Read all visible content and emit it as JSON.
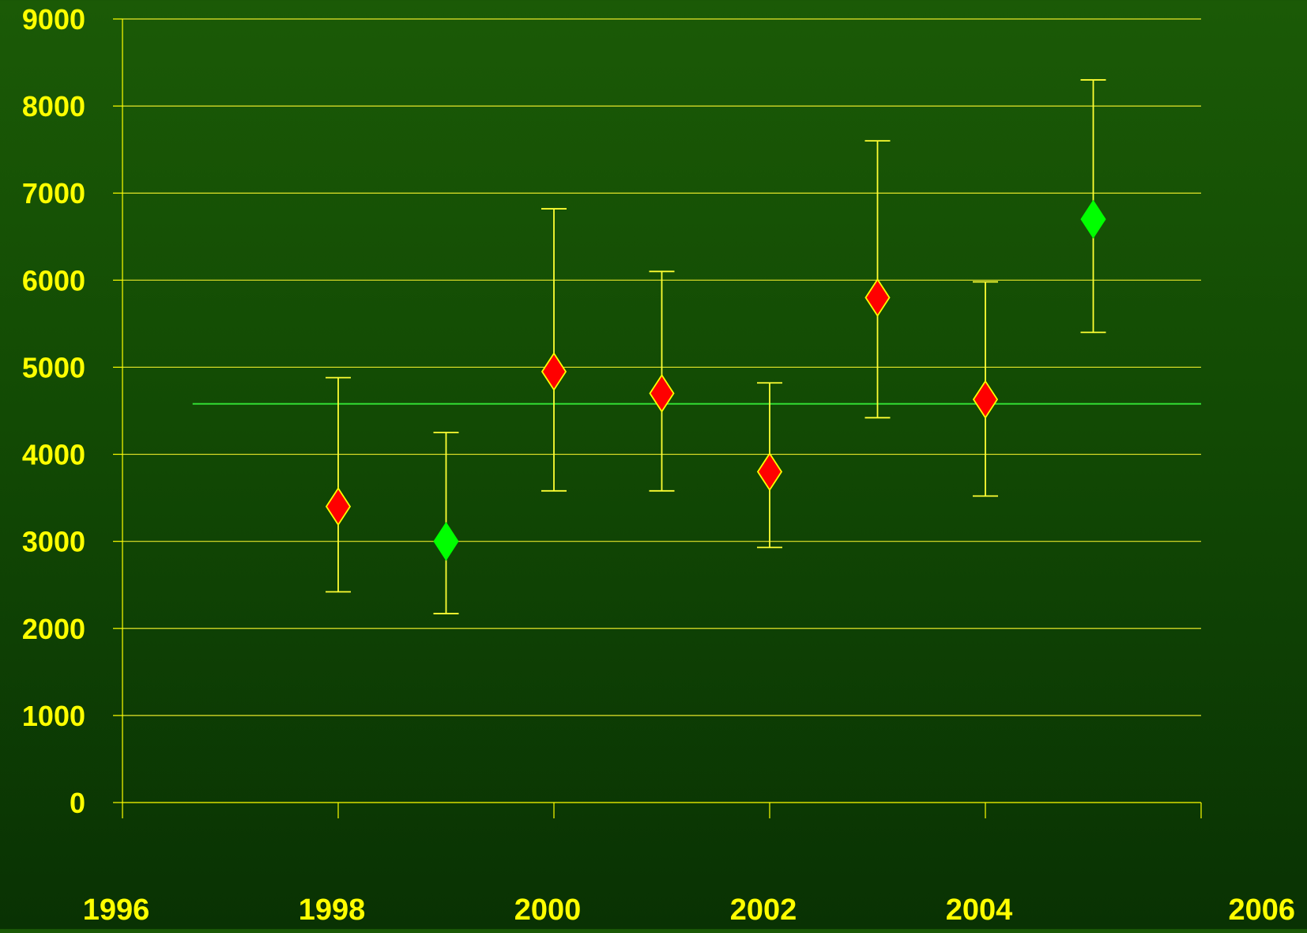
{
  "colors": {
    "axis": "#ffff00",
    "grid": "#e6e62a",
    "tick_text": "#ffff00",
    "error_bar": "#ffff33",
    "marker_red": "#ff0000",
    "marker_green": "#00ff00",
    "marker_outline": "#ffff00",
    "reference_line": "#33dd33"
  },
  "chart_data": {
    "type": "scatter",
    "title": "",
    "xlabel": "",
    "ylabel": "",
    "xlim": [
      1996,
      2006
    ],
    "ylim": [
      0,
      9000
    ],
    "grid": true,
    "x_ticks": [
      "1996",
      "1998",
      "2000",
      "2002",
      "2004",
      "2006"
    ],
    "y_ticks": [
      "0",
      "1000",
      "2000",
      "3000",
      "4000",
      "5000",
      "6000",
      "7000",
      "8000",
      "9000"
    ],
    "reference_line": {
      "y": 4580,
      "x_start": 1996.65,
      "x_end": 2006
    },
    "points": [
      {
        "x": 1998,
        "y": 3400,
        "low": 2420,
        "high": 4880,
        "marker_color": "red"
      },
      {
        "x": 1999,
        "y": 3000,
        "low": 2170,
        "high": 4250,
        "marker_color": "green"
      },
      {
        "x": 2000,
        "y": 4950,
        "low": 3580,
        "high": 6820,
        "marker_color": "red"
      },
      {
        "x": 2001,
        "y": 4700,
        "low": 3580,
        "high": 6100,
        "marker_color": "red"
      },
      {
        "x": 2002,
        "y": 3800,
        "low": 2930,
        "high": 4820,
        "marker_color": "red"
      },
      {
        "x": 2003,
        "y": 5800,
        "low": 4420,
        "high": 7600,
        "marker_color": "red"
      },
      {
        "x": 2004,
        "y": 4630,
        "low": 3520,
        "high": 5980,
        "marker_color": "red"
      },
      {
        "x": 2005,
        "y": 6700,
        "low": 5400,
        "high": 8300,
        "marker_color": "green"
      }
    ]
  }
}
